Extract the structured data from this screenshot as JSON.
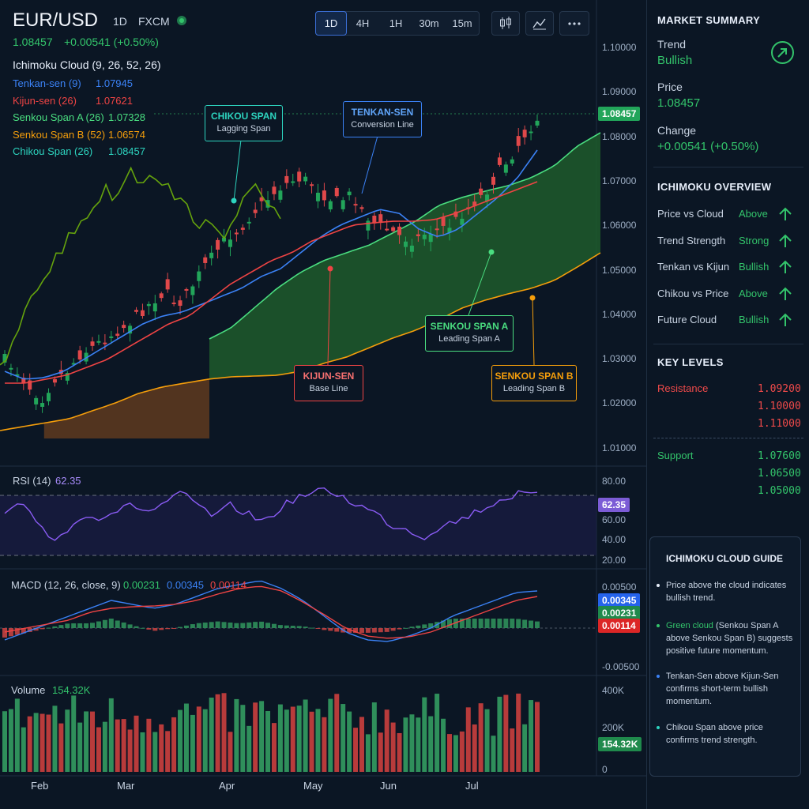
{
  "header": {
    "symbol": "EUR/USD",
    "interval": "1D",
    "source": "FXCM",
    "price": "1.08457",
    "change": "+0.00541 (+0.50%)"
  },
  "toolbar": {
    "timeframes": [
      "1D",
      "4H",
      "1H",
      "30m",
      "15m"
    ],
    "active": "1D",
    "icons": [
      "candles-icon",
      "indicators-icon",
      "more-icon"
    ]
  },
  "legend": {
    "title": "Ichimoku Cloud (9, 26, 52, 26)",
    "rows": [
      {
        "label": "Tenkan-sen (9)",
        "value": "1.07945",
        "color": "#3b82f6"
      },
      {
        "label": "Kijun-sen (26)",
        "value": "1.07621",
        "color": "#ef4444"
      },
      {
        "label": "Senkou Span A (26)",
        "value": "1.07328",
        "color": "#4ade80"
      },
      {
        "label": "Senkou Span B (52)",
        "value": "1.06574",
        "color": "#f59e0b"
      },
      {
        "label": "Chikou Span (26)",
        "value": "1.08457",
        "color": "#2dd4bf"
      }
    ]
  },
  "callouts": {
    "chikou": {
      "title": "CHIKOU SPAN",
      "sub": "Lagging Span"
    },
    "tenkan": {
      "title": "TENKAN-SEN",
      "sub": "Conversion Line"
    },
    "kijun": {
      "title": "KIJUN-SEN",
      "sub": "Base Line"
    },
    "spanA": {
      "title": "SENKOU SPAN A",
      "sub": "Leading Span A"
    },
    "spanB": {
      "title": "SENKOU SPAN B",
      "sub": "Leading Span B"
    }
  },
  "price_axis": [
    "1.10000",
    "1.09000",
    "1.08000",
    "1.07000",
    "1.06000",
    "1.05000",
    "1.04000",
    "1.03000",
    "1.02000",
    "1.01000"
  ],
  "price_tag": "1.08457",
  "rsi": {
    "label": "RSI (14)",
    "value": "62.35",
    "axis": [
      "80.00",
      "60.00",
      "40.00",
      "20.00"
    ],
    "tag": "62.35"
  },
  "macd": {
    "label": "MACD (12, 26, close, 9)",
    "v1": "0.00231",
    "v2": "0.00345",
    "v3": "0.00114",
    "axis": [
      "0.00500",
      "-0.00500"
    ],
    "tags": [
      "0.00345",
      "0.00231",
      "0.00114"
    ]
  },
  "volume": {
    "label": "Volume",
    "value": "154.32K",
    "axis": [
      "400K",
      "200K",
      "0"
    ],
    "tag": "154.32K"
  },
  "months": [
    "Feb",
    "Mar",
    "Apr",
    "May",
    "Jun",
    "Jul"
  ],
  "sidebar": {
    "summary_title": "MARKET SUMMARY",
    "trend_label": "Trend",
    "trend_value": "Bullish",
    "price_label": "Price",
    "price_value": "1.08457",
    "change_label": "Change",
    "change_value": "+0.00541 (+0.50%)",
    "overview_title": "ICHIMOKU OVERVIEW",
    "overview": [
      {
        "label": "Price vs Cloud",
        "value": "Above"
      },
      {
        "label": "Trend Strength",
        "value": "Strong"
      },
      {
        "label": "Tenkan vs Kijun",
        "value": "Bullish"
      },
      {
        "label": "Chikou vs Price",
        "value": "Above"
      },
      {
        "label": "Future Cloud",
        "value": "Bullish"
      }
    ],
    "levels_title": "KEY LEVELS",
    "resistance_label": "Resistance",
    "resistance": [
      "1.09200",
      "1.10000",
      "1.11000"
    ],
    "support_label": "Support",
    "support": [
      "1.07600",
      "1.06500",
      "1.05000"
    ]
  },
  "guide": {
    "title": "ICHIMOKU CLOUD GUIDE",
    "items": [
      {
        "color": "#e7eefa",
        "highlight": "",
        "text": "Price above the cloud indicates bullish trend."
      },
      {
        "color": "#33c46b",
        "highlight": "Green cloud",
        "text": " (Senkou Span A above Senkou Span B) suggests positive future momentum."
      },
      {
        "color": "#3b82f6",
        "highlight": "",
        "text": "Tenkan-Sen above Kijun-Sen confirms short-term bullish momentum."
      },
      {
        "color": "#2dd4bf",
        "highlight": "",
        "text": "Chikou Span above price confirms trend strength."
      }
    ]
  }
}
